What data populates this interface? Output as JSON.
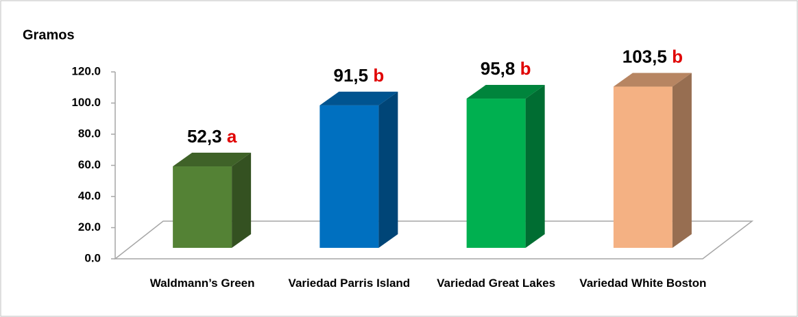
{
  "chart_data": {
    "type": "bar3d",
    "ylabel": "Gramos",
    "categories": [
      "Waldmann’s Green",
      "Variedad Parris Island",
      "Variedad Great Lakes",
      "Variedad White Boston"
    ],
    "values": [
      52.3,
      91.5,
      95.8,
      103.5
    ],
    "value_labels": [
      "52,3",
      "91,5",
      "95,8",
      "103,5"
    ],
    "letters": [
      "a",
      "b",
      "b",
      "b"
    ],
    "colors": [
      "#548235",
      "#0070c0",
      "#00b050",
      "#f4b183"
    ],
    "letter_color": "#e00000",
    "ylim": [
      0,
      120
    ],
    "yticks": [
      {
        "value": 0,
        "label": "0.0"
      },
      {
        "value": 20,
        "label": "20.0"
      },
      {
        "value": 40,
        "label": "40.0"
      },
      {
        "value": 60,
        "label": "60.0"
      },
      {
        "value": 80,
        "label": "80.0"
      },
      {
        "value": 100,
        "label": "100.0"
      },
      {
        "value": 120,
        "label": "120.0"
      }
    ]
  }
}
